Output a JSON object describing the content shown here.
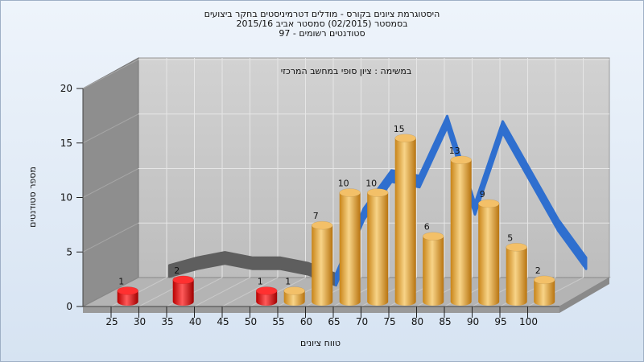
{
  "chart_data": {
    "type": "bar",
    "title_lines": [
      "היסטוגרמת ציונים בקורס - מודלים דטרמיניסטים בחקר ביצועים",
      "בסמסטר   (02/2015)  סמסטר אביב 2015/16",
      "סטודנטים רשומים - 97"
    ],
    "subtitle": "במשימה : ציון סופי במחשב המרכזי",
    "xlabel": "טווח ציונים",
    "ylabel": "מספר סטודנטים",
    "ylim": [
      0,
      20
    ],
    "yticks": [
      0,
      5,
      10,
      15,
      20
    ],
    "x_ticks": [
      25,
      30,
      35,
      40,
      45,
      50,
      55,
      60,
      65,
      70,
      75,
      80,
      85,
      90,
      95,
      100
    ],
    "bins": [
      {
        "center": 27.5,
        "value": 1,
        "status": "fail"
      },
      {
        "center": 37.5,
        "value": 2,
        "status": "fail"
      },
      {
        "center": 52.5,
        "value": 1,
        "status": "fail"
      },
      {
        "center": 57.5,
        "value": 1,
        "status": "pass"
      },
      {
        "center": 62.5,
        "value": 7,
        "status": "pass"
      },
      {
        "center": 67.5,
        "value": 10,
        "status": "pass"
      },
      {
        "center": 72.5,
        "value": 10,
        "status": "pass"
      },
      {
        "center": 77.5,
        "value": 15,
        "status": "pass"
      },
      {
        "center": 82.5,
        "value": 6,
        "status": "pass"
      },
      {
        "center": 87.5,
        "value": 13,
        "status": "pass"
      },
      {
        "center": 92.5,
        "value": 9,
        "status": "pass"
      },
      {
        "center": 97.5,
        "value": 5,
        "status": "pass"
      },
      {
        "center": 102.5,
        "value": 2,
        "status": "pass"
      }
    ],
    "curve_fail": {
      "x": [
        30,
        35,
        40,
        45,
        50,
        55,
        60
      ],
      "y": [
        1.8,
        2.5,
        3.0,
        2.5,
        2.5,
        2.0,
        1.0
      ]
    },
    "curve_pass": {
      "x": [
        60,
        65,
        70,
        75,
        80,
        85,
        90,
        95,
        100,
        105
      ],
      "y": [
        1.0,
        7.0,
        10.5,
        10.0,
        15.5,
        7.5,
        15.0,
        10.5,
        6.0,
        2.5
      ]
    },
    "colors": {
      "fail": "#e01010",
      "pass": "#e8a83c",
      "curve_fail": "#5e5e5e",
      "curve_pass": "#2f6fcf",
      "plot_back": "#c8c8c8",
      "side_wall": "#8e8e8e",
      "floor": "#b4b4b4"
    }
  }
}
